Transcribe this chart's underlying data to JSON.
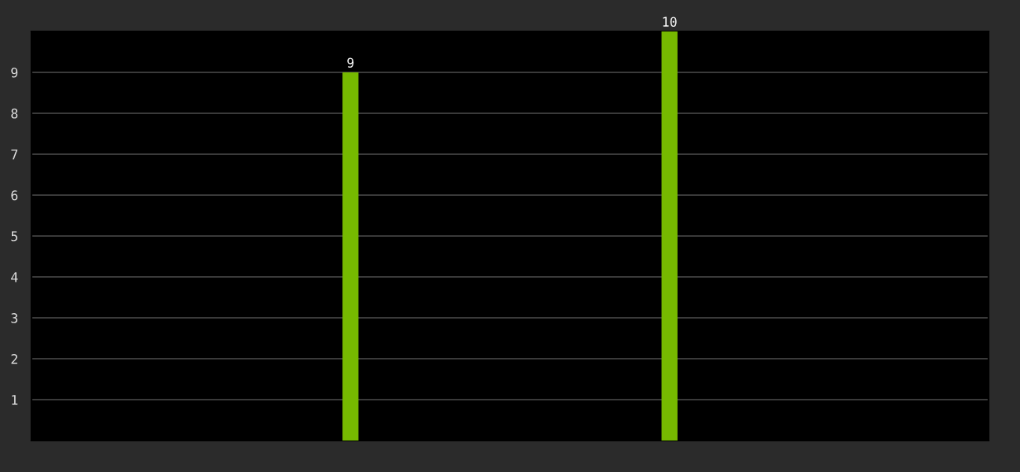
{
  "chart_data": {
    "type": "bar",
    "categories": [
      null,
      null
    ],
    "values": [
      9,
      10
    ],
    "color": "#76b900",
    "ylim": [
      0,
      10
    ],
    "yticks": [
      1,
      2,
      3,
      4,
      5,
      6,
      7,
      8,
      9
    ],
    "grid": "y",
    "data_labels": true
  }
}
